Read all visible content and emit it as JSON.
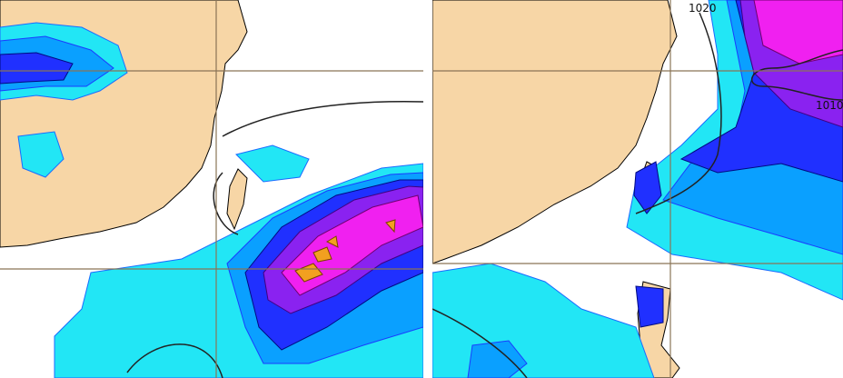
{
  "right_panel": {
    "isobar_labels": [
      "1020",
      "1010"
    ]
  }
}
